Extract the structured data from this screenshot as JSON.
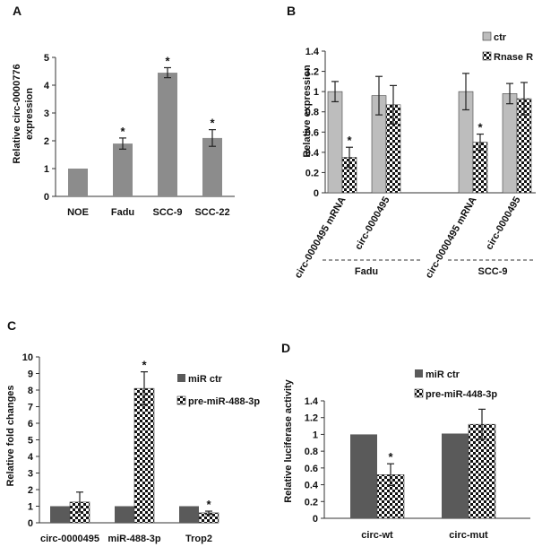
{
  "colors": {
    "gray": "#8c8c8c",
    "dark": "#5a5a5a",
    "light": "#bdbdbd",
    "check": "#111111",
    "white": "#ffffff"
  },
  "panels": {
    "A": "A",
    "B": "B",
    "C": "C",
    "D": "D"
  },
  "chart_data": [
    {
      "id": "A",
      "type": "bar",
      "ylabel_line1": "Relative circ-0000776",
      "ylabel_line2": "expression",
      "ylim": [
        0,
        5
      ],
      "yticks": [
        0,
        1,
        2,
        3,
        4,
        5
      ],
      "categories": [
        "NOE",
        "Fadu",
        "SCC-9",
        "SCC-22"
      ],
      "values": [
        1.0,
        1.9,
        4.45,
        2.1
      ],
      "errors": [
        0,
        0.2,
        0.18,
        0.3
      ],
      "significance": [
        "",
        "*",
        "*",
        "*"
      ]
    },
    {
      "id": "B",
      "type": "bar",
      "ylabel": "Relative expression",
      "ylim": [
        0,
        1.4
      ],
      "yticks": [
        0,
        0.2,
        0.4,
        0.6,
        0.8,
        1.0,
        1.2,
        1.4
      ],
      "ytick_labels": [
        "0",
        "0.2",
        "0.4",
        "0.6",
        "0.8",
        "1",
        "1.2",
        "1.4"
      ],
      "categories": [
        "circ-0000495 mRNA",
        "circ-0000495",
        "circ-0000495 mRNA",
        "circ-0000495"
      ],
      "groups": [
        "Fadu",
        "SCC-9"
      ],
      "series": [
        {
          "name": "ctr",
          "pattern": "light",
          "values": [
            1.0,
            0.96,
            1.0,
            0.98
          ],
          "errors": [
            0.1,
            0.19,
            0.18,
            0.1
          ]
        },
        {
          "name": "Rnase R",
          "pattern": "check",
          "values": [
            0.35,
            0.87,
            0.5,
            0.93
          ],
          "errors": [
            0.1,
            0.19,
            0.08,
            0.16
          ],
          "significance": [
            "*",
            "",
            "*",
            ""
          ]
        }
      ]
    },
    {
      "id": "C",
      "type": "bar",
      "ylabel": "Relative fold changes",
      "ylim": [
        0,
        10
      ],
      "yticks": [
        0,
        1,
        2,
        3,
        4,
        5,
        6,
        7,
        8,
        9,
        10
      ],
      "categories": [
        "circ-0000495",
        "miR-488-3p",
        "Trop2"
      ],
      "series": [
        {
          "name": "miR ctr",
          "pattern": "dark",
          "values": [
            1.0,
            1.0,
            1.0
          ],
          "errors": [
            0,
            0,
            0
          ]
        },
        {
          "name": "pre-miR-488-3p",
          "pattern": "check",
          "values": [
            1.25,
            8.1,
            0.6
          ],
          "errors": [
            0.6,
            1.0,
            0.1
          ],
          "significance": [
            "",
            "*",
            "*"
          ]
        }
      ]
    },
    {
      "id": "D",
      "type": "bar",
      "ylabel": "Relative luciferase activity",
      "ylim": [
        0,
        1.4
      ],
      "yticks": [
        0,
        0.2,
        0.4,
        0.6,
        0.8,
        1.0,
        1.2,
        1.4
      ],
      "ytick_labels": [
        "0",
        "0.2",
        "0.4",
        "0.6",
        "0.8",
        "1",
        "1.2",
        "1.4"
      ],
      "categories": [
        "circ-wt",
        "circ-mut"
      ],
      "series": [
        {
          "name": "miR ctr",
          "pattern": "dark",
          "values": [
            1.0,
            1.01
          ],
          "errors": [
            0,
            0
          ]
        },
        {
          "name": "pre-miR-448-3p",
          "pattern": "check",
          "values": [
            0.52,
            1.12
          ],
          "errors": [
            0.13,
            0.18
          ],
          "significance": [
            "*",
            ""
          ]
        }
      ]
    }
  ]
}
